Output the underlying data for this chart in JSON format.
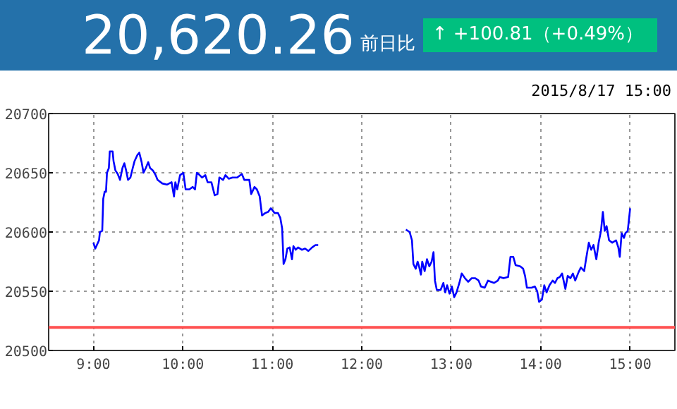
{
  "chart_data": {
    "type": "line",
    "title": "20,620.26",
    "subtitle": "前日比",
    "annotations": [
      "↑ +100.81（+0.49%）",
      "2015/8/17 15:00"
    ],
    "xlim": [
      8.5,
      15.5
    ],
    "xticks": [
      {
        "value": 9,
        "label": "9:00"
      },
      {
        "value": 10,
        "label": "10:00"
      },
      {
        "value": 11,
        "label": "11:00"
      },
      {
        "value": 12,
        "label": "12:00"
      },
      {
        "value": 13,
        "label": "13:00"
      },
      {
        "value": 14,
        "label": "14:00"
      },
      {
        "value": 15,
        "label": "15:00"
      }
    ],
    "ylim": [
      20500,
      20700
    ],
    "yticks": [
      20500,
      20550,
      20600,
      20650,
      20700
    ],
    "grid": true,
    "line_style": "solid",
    "marker": "none",
    "ref_lines": [
      {
        "axis": "y",
        "value": 20519.45,
        "color": "#ff5050"
      }
    ],
    "series": [
      {
        "color": "#0000ff",
        "x": [
          9.0,
          9.021,
          9.063,
          9.073,
          9.099,
          9.11,
          9.126,
          9.141,
          9.152,
          9.173,
          9.183,
          9.215,
          9.225,
          9.246,
          9.272,
          9.298,
          9.325,
          9.346,
          9.366,
          9.387,
          9.414,
          9.44,
          9.461,
          9.492,
          9.513,
          9.539,
          9.56,
          9.586,
          9.613,
          9.634,
          9.665,
          9.696,
          9.717,
          9.77,
          9.822,
          9.874,
          9.901,
          9.916,
          9.937,
          9.969,
          10.005,
          10.031,
          10.073,
          10.11,
          10.136,
          10.157,
          10.188,
          10.215,
          10.251,
          10.277,
          10.319,
          10.356,
          10.387,
          10.408,
          10.45,
          10.476,
          10.513,
          10.555,
          10.607,
          10.66,
          10.686,
          10.712,
          10.743,
          10.764,
          10.801,
          10.827,
          10.859,
          10.885,
          10.921,
          10.953,
          10.984,
          11.026,
          11.063,
          11.089,
          11.11,
          11.126,
          11.147,
          11.168,
          11.194,
          11.22,
          11.236,
          11.262,
          11.288,
          11.33,
          11.366,
          11.403,
          11.445,
          11.482,
          11.513,
          12.0,
          12.493,
          12.535,
          12.561,
          12.577,
          12.603,
          12.624,
          12.64,
          12.661,
          12.676,
          12.703,
          12.729,
          12.755,
          12.781,
          12.802,
          12.818,
          12.839,
          12.881,
          12.912,
          12.933,
          12.954,
          12.981,
          13.007,
          13.033,
          13.059,
          13.091,
          13.117,
          13.154,
          13.19,
          13.227,
          13.269,
          13.306,
          13.332,
          13.374,
          13.411,
          13.442,
          13.479,
          13.521,
          13.542,
          13.584,
          13.636,
          13.662,
          13.694,
          13.72,
          13.772,
          13.804,
          13.825,
          13.846,
          13.898,
          13.935,
          13.961,
          13.982,
          14.014,
          14.04,
          14.066,
          14.098,
          14.134,
          14.16,
          14.187,
          14.213,
          14.239,
          14.276,
          14.302,
          14.333,
          14.36,
          14.386,
          14.423,
          14.449,
          14.486,
          14.507,
          14.538,
          14.564,
          14.59,
          14.622,
          14.648,
          14.674,
          14.695,
          14.716,
          14.737,
          14.764,
          14.8,
          14.842,
          14.868,
          14.884,
          14.905,
          14.931,
          14.947,
          14.973,
          15.0
        ],
        "values": [
          20591,
          20586,
          20593,
          20600,
          20601,
          20628,
          20634,
          20634,
          20650,
          20654,
          20668,
          20668,
          20660,
          20652,
          20649,
          20644,
          20654,
          20658,
          20652,
          20644,
          20646,
          20654,
          20660,
          20665,
          20667,
          20659,
          20650,
          20654,
          20659,
          20654,
          20652,
          20648,
          20644,
          20641,
          20640,
          20642,
          20630,
          20642,
          20636,
          20648,
          20650,
          20636,
          20636,
          20638,
          20636,
          20650,
          20648,
          20646,
          20648,
          20642,
          20642,
          20631,
          20632,
          20646,
          20644,
          20648,
          20645,
          20646,
          20646,
          20649,
          20644,
          20644,
          20644,
          20632,
          20638,
          20636,
          20630,
          20614,
          20616,
          20617,
          20620,
          20616,
          20616,
          20612,
          20603,
          20573,
          20577,
          20586,
          20587,
          20577,
          20588,
          20585,
          20587,
          20585,
          20586,
          20584,
          20587,
          20589,
          20589,
          null,
          20602,
          20600,
          20593,
          20573,
          20569,
          20575,
          20571,
          20564,
          20575,
          20567,
          20577,
          20571,
          20575,
          20583,
          20559,
          20551,
          20551,
          20557,
          20549,
          20555,
          20548,
          20554,
          20545,
          20549,
          20557,
          20565,
          20561,
          20558,
          20561,
          20561,
          20559,
          20554,
          20553,
          20559,
          20558,
          20557,
          20559,
          20562,
          20561,
          20562,
          20579,
          20579,
          20572,
          20571,
          20569,
          20563,
          20553,
          20553,
          20554,
          20550,
          20541,
          20543,
          20555,
          20549,
          20555,
          20559,
          20557,
          20561,
          20562,
          20565,
          20552,
          20563,
          20561,
          20565,
          20559,
          20566,
          20570,
          20567,
          20577,
          20591,
          20585,
          20589,
          20577,
          20591,
          20601,
          20617,
          20601,
          20605,
          20593,
          20591,
          20593,
          20587,
          20579,
          20599,
          20595,
          20599,
          20601,
          20620
        ]
      }
    ]
  }
}
